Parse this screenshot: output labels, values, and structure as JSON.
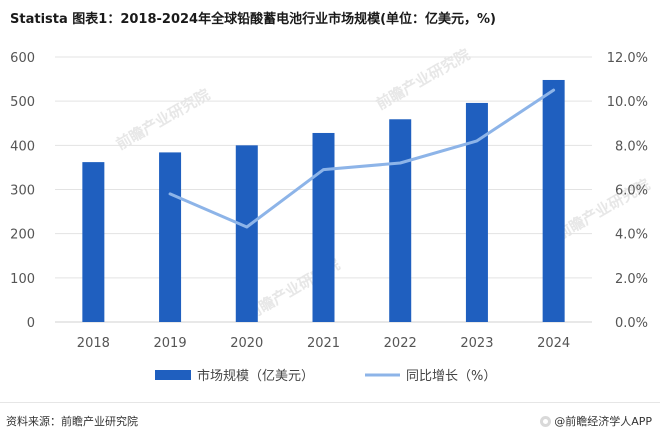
{
  "header": {
    "title": "Statista 图表1：2018-2024年全球铅酸蓄电池行业市场规模(单位：亿美元，%)"
  },
  "footer": {
    "source": "资料来源：前瞻产业研究院",
    "brand": "@前瞻经济学人APP"
  },
  "watermark": {
    "text": "前瞻产业研究院"
  },
  "colors": {
    "bar": "#1f5fbf",
    "line": "#8db4e8",
    "grid": "#e3e3e3"
  },
  "chart_data": {
    "type": "bar",
    "title": "Statista 图表1：2018-2024年全球铅酸蓄电池行业市场规模(单位：亿美元，%)",
    "categories": [
      "2018",
      "2019",
      "2020",
      "2021",
      "2022",
      "2023",
      "2024"
    ],
    "ylim": [
      0,
      600
    ],
    "y_ticks": [
      "0",
      "100",
      "200",
      "300",
      "400",
      "500",
      "600"
    ],
    "y2lim": [
      0,
      12
    ],
    "y2_ticks": [
      "0.0%",
      "2.0%",
      "4.0%",
      "6.0%",
      "8.0%",
      "10.0%",
      "12.0%"
    ],
    "grid": true,
    "legend_position": "bottom",
    "series": [
      {
        "name": "市场规模（亿美元）",
        "type": "bar",
        "axis": "left",
        "values": [
          362,
          384,
          400,
          428,
          459,
          496,
          548
        ]
      },
      {
        "name": "同比增长（%）",
        "type": "line",
        "axis": "right",
        "values": [
          null,
          5.8,
          4.3,
          6.9,
          7.2,
          8.2,
          10.5
        ]
      }
    ]
  }
}
